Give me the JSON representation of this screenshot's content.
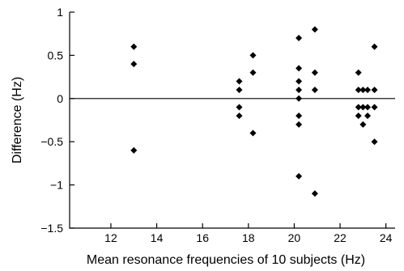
{
  "chart_data": {
    "type": "scatter",
    "title": "",
    "xlabel": "Mean resonance frequencies of 10 subjects (Hz)",
    "ylabel": "Difference (Hz)",
    "xlim": [
      10.2,
      24.4
    ],
    "ylim": [
      -1.5,
      1.0
    ],
    "xticks": [
      12,
      14,
      16,
      18,
      20,
      22,
      24
    ],
    "yticks": [
      -1.5,
      -1,
      -0.5,
      0,
      0.5,
      1
    ],
    "xtick_labels": [
      "12",
      "14",
      "16",
      "18",
      "20",
      "22",
      "24"
    ],
    "ytick_labels": [
      "−1.5",
      "−1",
      "−0.5",
      "0",
      "0.5",
      "1"
    ],
    "reference_line_y": 0,
    "marker": "diamond",
    "marker_color": "#000000",
    "grid": false,
    "legend": "none",
    "points": [
      {
        "x": 13.0,
        "y": 0.6
      },
      {
        "x": 13.0,
        "y": 0.4
      },
      {
        "x": 13.0,
        "y": -0.6
      },
      {
        "x": 17.6,
        "y": 0.2
      },
      {
        "x": 17.6,
        "y": 0.1
      },
      {
        "x": 17.6,
        "y": -0.1
      },
      {
        "x": 17.6,
        "y": -0.2
      },
      {
        "x": 18.2,
        "y": 0.5
      },
      {
        "x": 18.2,
        "y": 0.3
      },
      {
        "x": 18.2,
        "y": -0.4
      },
      {
        "x": 20.2,
        "y": 0.7
      },
      {
        "x": 20.2,
        "y": 0.35
      },
      {
        "x": 20.2,
        "y": 0.2
      },
      {
        "x": 20.2,
        "y": 0.1
      },
      {
        "x": 20.2,
        "y": 0.0
      },
      {
        "x": 20.2,
        "y": -0.2
      },
      {
        "x": 20.2,
        "y": -0.3
      },
      {
        "x": 20.2,
        "y": -0.9
      },
      {
        "x": 20.9,
        "y": 0.8
      },
      {
        "x": 20.9,
        "y": 0.3
      },
      {
        "x": 20.9,
        "y": 0.1
      },
      {
        "x": 20.9,
        "y": -1.1
      },
      {
        "x": 22.8,
        "y": 0.3
      },
      {
        "x": 22.8,
        "y": 0.1
      },
      {
        "x": 22.8,
        "y": -0.1
      },
      {
        "x": 22.8,
        "y": -0.2
      },
      {
        "x": 23.0,
        "y": 0.1
      },
      {
        "x": 23.0,
        "y": -0.1
      },
      {
        "x": 23.0,
        "y": -0.3
      },
      {
        "x": 23.2,
        "y": 0.1
      },
      {
        "x": 23.2,
        "y": -0.1
      },
      {
        "x": 23.2,
        "y": -0.2
      },
      {
        "x": 23.5,
        "y": 0.6
      },
      {
        "x": 23.5,
        "y": 0.1
      },
      {
        "x": 23.5,
        "y": -0.1
      },
      {
        "x": 23.5,
        "y": -0.5
      }
    ]
  }
}
